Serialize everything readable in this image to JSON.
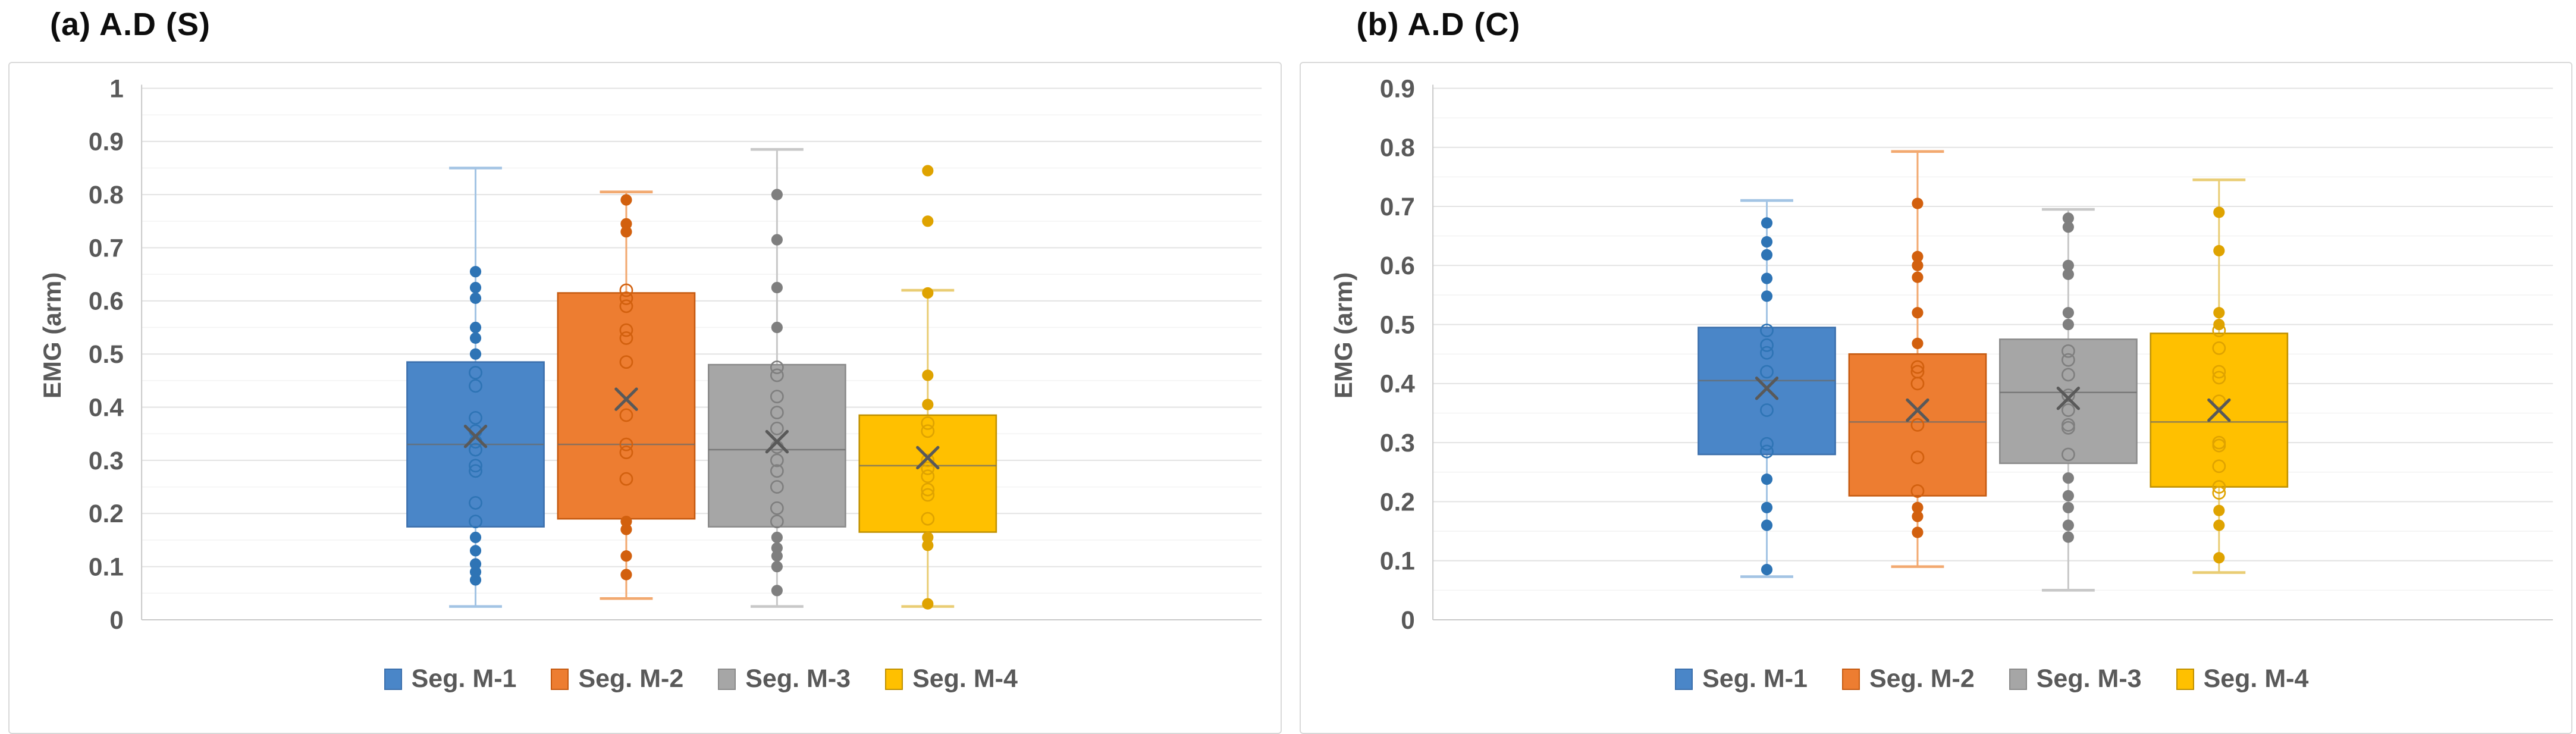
{
  "chart_data": [
    {
      "type": "boxplot",
      "title": "(a) A.D (S)",
      "ylabel": "EMG (arm)",
      "ylim": [
        0,
        1
      ],
      "ytick_step": 0.1,
      "yticks": [
        "1",
        "0.9",
        "0.8",
        "0.7",
        "0.6",
        "0.5",
        "0.4",
        "0.3",
        "0.2",
        "0.1",
        "0"
      ],
      "grid": "major-and-minor",
      "legend_position": "bottom",
      "series": [
        {
          "name": "Seg. M-1",
          "colors": {
            "fill": "#4A86C8",
            "border": "#3B6FAC",
            "whisker": "#A3C4E4",
            "point": "#2E74B5"
          },
          "whisker_low": 0.025,
          "q1": 0.175,
          "median": 0.33,
          "mean": 0.345,
          "q3": 0.485,
          "whisker_high": 0.85,
          "outliers": [],
          "points_filled": [
            0.655,
            0.625,
            0.605,
            0.55,
            0.53,
            0.5,
            0.155,
            0.13,
            0.105,
            0.09,
            0.075
          ],
          "points_open": [
            0.465,
            0.44,
            0.38,
            0.355,
            0.335,
            0.32,
            0.29,
            0.28,
            0.22,
            0.185
          ]
        },
        {
          "name": "Seg. M-2",
          "colors": {
            "fill": "#ED7D31",
            "border": "#C55A11",
            "whisker": "#F2A970",
            "point": "#D2600E"
          },
          "whisker_low": 0.04,
          "q1": 0.19,
          "median": 0.33,
          "mean": 0.415,
          "q3": 0.615,
          "whisker_high": 0.805,
          "outliers": [],
          "points_filled": [
            0.79,
            0.745,
            0.73,
            0.185,
            0.17,
            0.12,
            0.085
          ],
          "points_open": [
            0.62,
            0.605,
            0.59,
            0.545,
            0.53,
            0.485,
            0.385,
            0.33,
            0.315,
            0.265
          ]
        },
        {
          "name": "Seg. M-3",
          "colors": {
            "fill": "#A6A6A6",
            "border": "#8A8A8A",
            "whisker": "#C8C8C8",
            "point": "#7F7F7F"
          },
          "whisker_low": 0.025,
          "q1": 0.175,
          "median": 0.32,
          "mean": 0.335,
          "q3": 0.48,
          "whisker_high": 0.885,
          "outliers": [],
          "points_filled": [
            0.8,
            0.715,
            0.625,
            0.55,
            0.155,
            0.135,
            0.12,
            0.1,
            0.055
          ],
          "points_open": [
            0.475,
            0.46,
            0.42,
            0.39,
            0.36,
            0.325,
            0.3,
            0.28,
            0.25,
            0.21,
            0.185
          ]
        },
        {
          "name": "Seg. M-4",
          "colors": {
            "fill": "#FFC000",
            "border": "#BF9000",
            "whisker": "#E9CD74",
            "point": "#DFA300"
          },
          "whisker_low": 0.025,
          "q1": 0.165,
          "median": 0.29,
          "mean": 0.305,
          "q3": 0.385,
          "whisker_high": 0.62,
          "outliers": [
            0.845,
            0.75
          ],
          "points_filled": [
            0.615,
            0.46,
            0.405,
            0.155,
            0.14,
            0.03
          ],
          "points_open": [
            0.37,
            0.355,
            0.3,
            0.285,
            0.27,
            0.245,
            0.235,
            0.19
          ]
        }
      ]
    },
    {
      "type": "boxplot",
      "title": "(b) A.D (C)",
      "ylabel": "EMG (arm)",
      "ylim": [
        0,
        0.9
      ],
      "ytick_step": 0.1,
      "yticks": [
        "0.9",
        "0.8",
        "0.7",
        "0.6",
        "0.5",
        "0.4",
        "0.3",
        "0.2",
        "0.1",
        "0"
      ],
      "grid": "major-and-minor",
      "legend_position": "bottom",
      "series": [
        {
          "name": "Seg. M-1",
          "colors": {
            "fill": "#4A86C8",
            "border": "#3B6FAC",
            "whisker": "#A3C4E4",
            "point": "#2E74B5"
          },
          "whisker_low": 0.073,
          "q1": 0.28,
          "median": 0.405,
          "mean": 0.392,
          "q3": 0.495,
          "whisker_high": 0.71,
          "outliers": [],
          "points_filled": [
            0.672,
            0.64,
            0.618,
            0.578,
            0.548,
            0.238,
            0.19,
            0.16,
            0.085
          ],
          "points_open": [
            0.49,
            0.465,
            0.452,
            0.42,
            0.355,
            0.298,
            0.285
          ]
        },
        {
          "name": "Seg. M-2",
          "colors": {
            "fill": "#ED7D31",
            "border": "#C55A11",
            "whisker": "#F2A970",
            "point": "#D2600E"
          },
          "whisker_low": 0.09,
          "q1": 0.21,
          "median": 0.335,
          "mean": 0.355,
          "q3": 0.45,
          "whisker_high": 0.793,
          "outliers": [],
          "points_filled": [
            0.705,
            0.615,
            0.6,
            0.58,
            0.52,
            0.468,
            0.19,
            0.175,
            0.148
          ],
          "points_open": [
            0.428,
            0.42,
            0.4,
            0.33,
            0.275,
            0.218
          ]
        },
        {
          "name": "Seg. M-3",
          "colors": {
            "fill": "#A6A6A6",
            "border": "#8A8A8A",
            "whisker": "#C8C8C8",
            "point": "#7F7F7F"
          },
          "whisker_low": 0.05,
          "q1": 0.265,
          "median": 0.385,
          "mean": 0.375,
          "q3": 0.475,
          "whisker_high": 0.695,
          "outliers": [],
          "points_filled": [
            0.68,
            0.665,
            0.6,
            0.585,
            0.52,
            0.5,
            0.24,
            0.21,
            0.19,
            0.16,
            0.14
          ],
          "points_open": [
            0.455,
            0.44,
            0.415,
            0.38,
            0.355,
            0.33,
            0.325,
            0.28
          ]
        },
        {
          "name": "Seg. M-4",
          "colors": {
            "fill": "#FFC000",
            "border": "#BF9000",
            "whisker": "#E9CD74",
            "point": "#DFA300"
          },
          "whisker_low": 0.08,
          "q1": 0.225,
          "median": 0.335,
          "mean": 0.355,
          "q3": 0.485,
          "whisker_high": 0.745,
          "outliers": [],
          "points_filled": [
            0.69,
            0.625,
            0.52,
            0.5,
            0.185,
            0.16,
            0.105
          ],
          "points_open": [
            0.49,
            0.46,
            0.42,
            0.41,
            0.37,
            0.3,
            0.295,
            0.26,
            0.225,
            0.215
          ]
        }
      ]
    }
  ],
  "style": {
    "grid_major_color": "#e3e3e3",
    "grid_minor_color": "#f3f3f3",
    "axis_line_color": "#c9c9c9",
    "tick_label_color": "#595959",
    "median_line_color": "#6b6b6b",
    "mean_marker_color": "#595959"
  }
}
